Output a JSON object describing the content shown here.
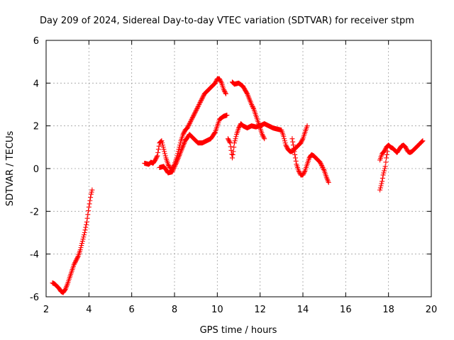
{
  "chart_data": {
    "type": "scatter",
    "title": "Day 209 of 2024, Sidereal Day-to-day VTEC variation (SDTVAR) for receiver stpm",
    "xlabel": "GPS time / hours",
    "ylabel": "SDTVAR / TECUs",
    "xlim": [
      2,
      20
    ],
    "ylim": [
      -6,
      6
    ],
    "xticks": [
      2,
      4,
      6,
      8,
      10,
      12,
      14,
      16,
      18,
      20
    ],
    "yticks": [
      -6,
      -4,
      -2,
      0,
      2,
      4,
      6
    ],
    "grid": true,
    "marker": "+",
    "color": "#ff0000",
    "series": [
      {
        "segments": [
          [
            [
              2.3,
              -5.35
            ],
            [
              2.4,
              -5.4
            ],
            [
              2.5,
              -5.5
            ],
            [
              2.6,
              -5.6
            ],
            [
              2.7,
              -5.75
            ],
            [
              2.8,
              -5.8
            ],
            [
              2.9,
              -5.65
            ],
            [
              3.0,
              -5.4
            ],
            [
              3.1,
              -5.1
            ],
            [
              3.2,
              -4.8
            ],
            [
              3.3,
              -4.5
            ],
            [
              3.4,
              -4.3
            ],
            [
              3.5,
              -4.1
            ],
            [
              3.6,
              -3.8
            ],
            [
              3.7,
              -3.4
            ],
            [
              3.8,
              -3.0
            ],
            [
              3.9,
              -2.5
            ],
            [
              4.0,
              -1.8
            ],
            [
              4.1,
              -1.2
            ],
            [
              4.15,
              -1.0
            ]
          ],
          [
            [
              6.6,
              0.25
            ],
            [
              6.8,
              0.2
            ],
            [
              6.9,
              0.3
            ],
            [
              7.0,
              0.25
            ],
            [
              7.1,
              0.4
            ],
            [
              7.2,
              0.6
            ],
            [
              7.3,
              1.2
            ],
            [
              7.4,
              1.3
            ],
            [
              7.5,
              0.9
            ],
            [
              7.6,
              0.5
            ],
            [
              7.7,
              0.2
            ],
            [
              7.8,
              0.0
            ],
            [
              7.9,
              0.0
            ],
            [
              8.0,
              0.2
            ],
            [
              8.1,
              0.5
            ],
            [
              8.2,
              0.9
            ],
            [
              8.3,
              1.3
            ],
            [
              8.4,
              1.6
            ],
            [
              8.5,
              1.8
            ],
            [
              8.6,
              1.9
            ],
            [
              8.7,
              2.1
            ],
            [
              8.8,
              2.3
            ],
            [
              8.9,
              2.5
            ],
            [
              9.0,
              2.7
            ],
            [
              9.1,
              2.9
            ],
            [
              9.2,
              3.1
            ],
            [
              9.3,
              3.3
            ],
            [
              9.4,
              3.5
            ],
            [
              9.5,
              3.6
            ],
            [
              9.6,
              3.7
            ],
            [
              9.7,
              3.8
            ],
            [
              9.8,
              3.9
            ],
            [
              9.9,
              4.0
            ],
            [
              10.0,
              4.2
            ],
            [
              10.1,
              4.2
            ],
            [
              10.2,
              4.0
            ],
            [
              10.3,
              3.7
            ],
            [
              10.4,
              3.5
            ]
          ],
          [
            [
              7.3,
              0.05
            ],
            [
              7.5,
              0.1
            ],
            [
              7.7,
              -0.2
            ],
            [
              7.9,
              -0.15
            ],
            [
              8.1,
              0.3
            ],
            [
              8.3,
              0.8
            ],
            [
              8.5,
              1.3
            ],
            [
              8.7,
              1.6
            ],
            [
              8.9,
              1.4
            ],
            [
              9.1,
              1.2
            ],
            [
              9.3,
              1.2
            ],
            [
              9.5,
              1.3
            ],
            [
              9.7,
              1.4
            ],
            [
              9.9,
              1.7
            ],
            [
              10.0,
              2.0
            ],
            [
              10.1,
              2.3
            ],
            [
              10.3,
              2.45
            ],
            [
              10.45,
              2.5
            ]
          ],
          [
            [
              10.5,
              1.4
            ],
            [
              10.6,
              1.2
            ],
            [
              10.7,
              0.5
            ],
            [
              10.75,
              0.8
            ],
            [
              10.8,
              1.2
            ],
            [
              10.9,
              1.6
            ],
            [
              11.0,
              1.9
            ],
            [
              11.1,
              2.1
            ],
            [
              11.2,
              2.0
            ],
            [
              11.4,
              1.9
            ],
            [
              11.6,
              2.0
            ],
            [
              11.8,
              1.95
            ],
            [
              12.0,
              2.0
            ],
            [
              12.2,
              2.1
            ],
            [
              12.4,
              2.0
            ],
            [
              12.6,
              1.9
            ],
            [
              12.8,
              1.85
            ],
            [
              13.0,
              1.8
            ],
            [
              13.1,
              1.5
            ],
            [
              13.2,
              1.1
            ],
            [
              13.3,
              0.9
            ],
            [
              13.4,
              0.8
            ],
            [
              13.5,
              0.8
            ],
            [
              13.6,
              0.9
            ],
            [
              13.7,
              1.0
            ],
            [
              13.8,
              1.1
            ],
            [
              13.9,
              1.2
            ],
            [
              14.0,
              1.4
            ],
            [
              14.1,
              1.7
            ],
            [
              14.2,
              2.0
            ]
          ],
          [
            [
              10.7,
              4.05
            ],
            [
              10.8,
              3.95
            ],
            [
              11.0,
              4.0
            ],
            [
              11.2,
              3.85
            ],
            [
              11.4,
              3.5
            ],
            [
              11.6,
              3.0
            ],
            [
              11.7,
              2.8
            ],
            [
              11.8,
              2.5
            ],
            [
              11.9,
              2.2
            ],
            [
              12.0,
              1.9
            ],
            [
              12.1,
              1.6
            ],
            [
              12.2,
              1.4
            ]
          ],
          [
            [
              13.5,
              1.4
            ],
            [
              13.6,
              0.8
            ],
            [
              13.7,
              0.2
            ],
            [
              13.8,
              -0.1
            ],
            [
              13.9,
              -0.3
            ],
            [
              14.0,
              -0.3
            ],
            [
              14.1,
              -0.1
            ],
            [
              14.2,
              0.2
            ],
            [
              14.3,
              0.5
            ],
            [
              14.4,
              0.65
            ],
            [
              14.5,
              0.6
            ],
            [
              14.6,
              0.5
            ],
            [
              14.7,
              0.4
            ],
            [
              14.8,
              0.3
            ],
            [
              14.9,
              0.1
            ],
            [
              15.0,
              -0.1
            ],
            [
              15.1,
              -0.4
            ],
            [
              15.2,
              -0.65
            ]
          ],
          [
            [
              17.6,
              -1.0
            ],
            [
              17.65,
              -0.8
            ],
            [
              17.7,
              -0.6
            ],
            [
              17.75,
              -0.3
            ],
            [
              17.8,
              -0.1
            ],
            [
              17.85,
              0.1
            ],
            [
              17.9,
              0.5
            ],
            [
              17.95,
              0.8
            ]
          ],
          [
            [
              17.6,
              0.4
            ],
            [
              17.7,
              0.7
            ],
            [
              17.8,
              0.8
            ],
            [
              17.9,
              1.0
            ],
            [
              18.0,
              1.1
            ],
            [
              18.1,
              1.0
            ],
            [
              18.2,
              0.95
            ],
            [
              18.3,
              0.85
            ],
            [
              18.4,
              0.75
            ],
            [
              18.5,
              0.9
            ],
            [
              18.6,
              1.05
            ],
            [
              18.7,
              1.1
            ],
            [
              18.8,
              1.0
            ],
            [
              18.9,
              0.8
            ],
            [
              19.0,
              0.75
            ],
            [
              19.1,
              0.8
            ],
            [
              19.2,
              0.9
            ],
            [
              19.3,
              1.0
            ],
            [
              19.4,
              1.1
            ],
            [
              19.5,
              1.2
            ],
            [
              19.6,
              1.3
            ]
          ]
        ]
      }
    ]
  }
}
